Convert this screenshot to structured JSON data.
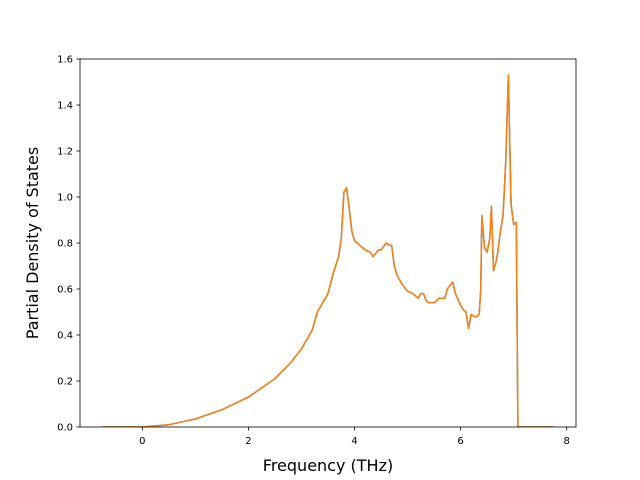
{
  "chart_data": {
    "type": "line",
    "x_label": "Frequency (THz)",
    "y_label": "Partial Density of States",
    "x": [
      -0.75,
      0,
      0.5,
      1,
      1.5,
      2,
      2.5,
      2.8,
      3,
      3.2,
      3.3,
      3.5,
      3.6,
      3.7,
      3.75,
      3.8,
      3.85,
      3.9,
      3.95,
      4.0,
      4.1,
      4.2,
      4.3,
      4.35,
      4.45,
      4.5,
      4.6,
      4.65,
      4.7,
      4.75,
      4.8,
      4.9,
      5.0,
      5.1,
      5.2,
      5.25,
      5.3,
      5.35,
      5.4,
      5.5,
      5.6,
      5.7,
      5.75,
      5.85,
      5.9,
      6.0,
      6.05,
      6.1,
      6.15,
      6.2,
      6.25,
      6.3,
      6.35,
      6.38,
      6.4,
      6.45,
      6.5,
      6.55,
      6.58,
      6.62,
      6.67,
      6.7,
      6.75,
      6.8,
      6.85,
      6.9,
      6.95,
      7.0,
      7.05,
      7.08,
      7.75
    ],
    "series": [
      {
        "color": "#1f77b4",
        "values": [
          0,
          0,
          0.01,
          0.035,
          0.075,
          0.13,
          0.21,
          0.28,
          0.34,
          0.42,
          0.5,
          0.58,
          0.67,
          0.74,
          0.82,
          1.02,
          1.04,
          0.95,
          0.85,
          0.81,
          0.79,
          0.77,
          0.76,
          0.74,
          0.77,
          0.77,
          0.8,
          0.79,
          0.79,
          0.7,
          0.66,
          0.62,
          0.59,
          0.58,
          0.56,
          0.58,
          0.58,
          0.55,
          0.54,
          0.54,
          0.56,
          0.56,
          0.6,
          0.63,
          0.58,
          0.53,
          0.51,
          0.5,
          0.43,
          0.49,
          0.48,
          0.48,
          0.49,
          0.6,
          0.92,
          0.78,
          0.76,
          0.82,
          0.96,
          0.68,
          0.72,
          0.76,
          0.85,
          0.92,
          1.15,
          1.53,
          0.97,
          0.88,
          0.89,
          0,
          0
        ]
      },
      {
        "color": "#ff7f0e",
        "values": [
          0,
          0,
          0.01,
          0.035,
          0.075,
          0.13,
          0.21,
          0.28,
          0.34,
          0.42,
          0.5,
          0.58,
          0.67,
          0.74,
          0.82,
          1.02,
          1.04,
          0.95,
          0.85,
          0.81,
          0.79,
          0.77,
          0.76,
          0.74,
          0.77,
          0.77,
          0.8,
          0.79,
          0.79,
          0.7,
          0.66,
          0.62,
          0.59,
          0.58,
          0.56,
          0.58,
          0.58,
          0.55,
          0.54,
          0.54,
          0.56,
          0.56,
          0.6,
          0.63,
          0.58,
          0.53,
          0.51,
          0.5,
          0.43,
          0.49,
          0.48,
          0.48,
          0.49,
          0.6,
          0.92,
          0.78,
          0.76,
          0.82,
          0.96,
          0.68,
          0.72,
          0.76,
          0.85,
          0.92,
          1.15,
          1.53,
          0.97,
          0.88,
          0.89,
          0,
          0
        ]
      }
    ],
    "xlim": [
      -1.175,
      8.175
    ],
    "xticks": [
      0,
      2,
      4,
      6,
      8
    ],
    "ylim": [
      0,
      1.6
    ],
    "yticks": [
      {
        "value": 0,
        "label": "0.0"
      },
      0.2,
      0.4,
      0.6,
      0.8,
      {
        "value": 1,
        "label": "1.0"
      },
      1.2,
      1.4,
      1.6
    ]
  }
}
